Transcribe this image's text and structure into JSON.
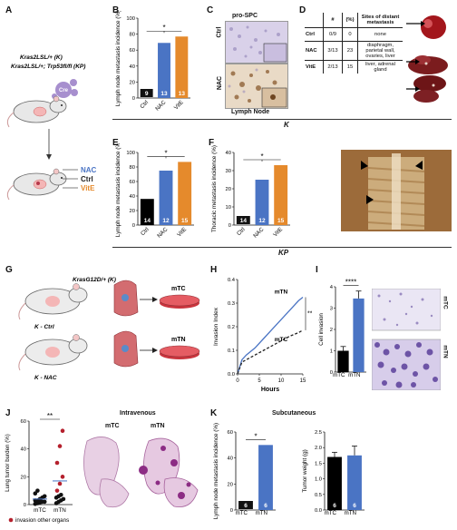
{
  "panel_letters": {
    "A": "A",
    "B": "B",
    "C": "C",
    "D": "D",
    "E": "E",
    "F": "F",
    "G": "G",
    "H": "H",
    "I": "I",
    "J": "J",
    "K2": "K"
  },
  "row_labels": {
    "K": "K",
    "KP": "KP"
  },
  "panelA": {
    "genotype1": "Kras2LSL/+ (K)",
    "genotype2": "Kras2LSL/+; Trp53fl/fl (KP)",
    "cre": "Cre",
    "treat_nac": "NAC",
    "treat_ctrl": "Ctrl",
    "treat_vite": "VitE"
  },
  "panelC": {
    "title": "pro-SPC",
    "row1": "Ctrl",
    "row2": "NAC",
    "bottom": "Lymph Node"
  },
  "panelD": {
    "headers": [
      "",
      "#",
      "(%)",
      "Sites of distant metastasis"
    ],
    "rows": [
      [
        "Ctrl",
        "0/9",
        "0",
        "none"
      ],
      [
        "NAC",
        "3/13",
        "23",
        "diaphragm, parietal wall, ovaries, liver"
      ],
      [
        "VitE",
        "2/13",
        "15",
        "liver, adrenal gland"
      ]
    ]
  },
  "panelG": {
    "label_k": "KrasG12D/+ (K)",
    "label_kctrl": "K - Ctrl",
    "label_knac": "K - NAC",
    "cell_mtc": "mTC",
    "cell_mtn": "mTN"
  },
  "panelJ": {
    "title": "Intravenous",
    "img1": "mTC",
    "img2": "mTN",
    "legend": "invasion other organs"
  },
  "panelK": {
    "title": "Subcutaneous"
  },
  "colors": {
    "ctrl": "#000000",
    "nac": "#4a74c4",
    "vite": "#e58a2c",
    "violet": "#8b6bb8"
  },
  "chart_data": [
    {
      "id": "B",
      "type": "bar",
      "categories": [
        "Ctrl",
        "NAC",
        "VitE"
      ],
      "values": [
        0,
        69,
        77
      ],
      "n_labels": [
        "9",
        "13",
        "13"
      ],
      "ylabel": "Lymph node metastasis incidence (%)",
      "ylim": [
        0,
        100
      ],
      "yticks": [
        "0",
        "20",
        "40",
        "60",
        "80",
        "100"
      ],
      "significance": "*"
    },
    {
      "id": "E",
      "type": "bar",
      "categories": [
        "Ctrl",
        "NAC",
        "VitE"
      ],
      "values": [
        36,
        75,
        87
      ],
      "n_labels": [
        "14",
        "12",
        "15"
      ],
      "ylabel": "Lymph node metastasis incidence (%)",
      "ylim": [
        0,
        100
      ],
      "yticks": [
        "0",
        "20",
        "40",
        "60",
        "80",
        "100"
      ],
      "significance": "*"
    },
    {
      "id": "F",
      "type": "bar",
      "categories": [
        "Ctrl",
        "NAC",
        "VitE"
      ],
      "values": [
        0,
        25,
        33
      ],
      "n_labels": [
        "14",
        "12",
        "15"
      ],
      "ylabel": "Thoracic metastasis incidence (%)",
      "ylim": [
        0,
        40
      ],
      "yticks": [
        "0",
        "10",
        "20",
        "30",
        "40"
      ],
      "significance": "*"
    },
    {
      "id": "H",
      "type": "line",
      "xlabel": "Hours",
      "ylabel": "Invasion Index",
      "xlim": [
        0,
        15
      ],
      "ylim": [
        0,
        0.4
      ],
      "xticks": [
        "0",
        "5",
        "10",
        "15"
      ],
      "yticks": [
        "0.0",
        "0.1",
        "0.2",
        "0.3",
        "0.4"
      ],
      "series": [
        {
          "name": "mTN",
          "style": "solid",
          "x": [
            0,
            1,
            2,
            4,
            6,
            8,
            10,
            12,
            14,
            15
          ],
          "y": [
            0,
            0.06,
            0.08,
            0.11,
            0.15,
            0.19,
            0.23,
            0.27,
            0.31,
            0.325
          ]
        },
        {
          "name": "mTC",
          "style": "dashed",
          "x": [
            0,
            1,
            2,
            4,
            6,
            8,
            10,
            12,
            14,
            15
          ],
          "y": [
            0,
            0.05,
            0.06,
            0.08,
            0.1,
            0.12,
            0.14,
            0.16,
            0.175,
            0.185
          ]
        }
      ],
      "significance": "**"
    },
    {
      "id": "I",
      "type": "bar",
      "categories": [
        "mTC",
        "mTN"
      ],
      "values": [
        1.0,
        3.45
      ],
      "errors": [
        0.2,
        0.35
      ],
      "ylabel": "Cell invasion",
      "ylim": [
        0,
        4
      ],
      "yticks": [
        "0",
        "1",
        "2",
        "3",
        "4"
      ],
      "significance": "****",
      "image_labels": [
        "mTC",
        "mTN"
      ]
    },
    {
      "id": "J",
      "type": "scatter",
      "categories": [
        "mTC",
        "mTN"
      ],
      "ylabel": "Lung tumor burden (%)",
      "ylim": [
        0,
        60
      ],
      "yticks": [
        "0",
        "20",
        "40",
        "60"
      ],
      "mTC_black": [
        0.5,
        1,
        1.5,
        2,
        2,
        3,
        3,
        4,
        5,
        6,
        8,
        10
      ],
      "mTN_black": [
        1,
        2,
        3,
        4,
        5,
        6,
        7
      ],
      "mTN_red": [
        10,
        15,
        20,
        30,
        42,
        53
      ],
      "means": [
        4,
        17
      ],
      "significance": "**"
    },
    {
      "id": "K_left",
      "type": "bar",
      "categories": [
        "mTC",
        "mTN"
      ],
      "values": [
        0,
        50
      ],
      "n_labels": [
        "6",
        "6"
      ],
      "ylabel": "Lymph node metastasis incidence (%)",
      "ylim": [
        0,
        60
      ],
      "yticks": [
        "0",
        "20",
        "40",
        "60"
      ],
      "significance": "*"
    },
    {
      "id": "K_right",
      "type": "bar",
      "categories": [
        "mTC",
        "mTN"
      ],
      "values": [
        1.7,
        1.75
      ],
      "errors": [
        0.15,
        0.3
      ],
      "n_labels": [
        "6",
        "6"
      ],
      "ylabel": "Tumor weight (g)",
      "ylim": [
        0,
        2.5
      ],
      "yticks": [
        "0.0",
        "0.5",
        "1.0",
        "1.5",
        "2.0",
        "2.5"
      ]
    }
  ]
}
